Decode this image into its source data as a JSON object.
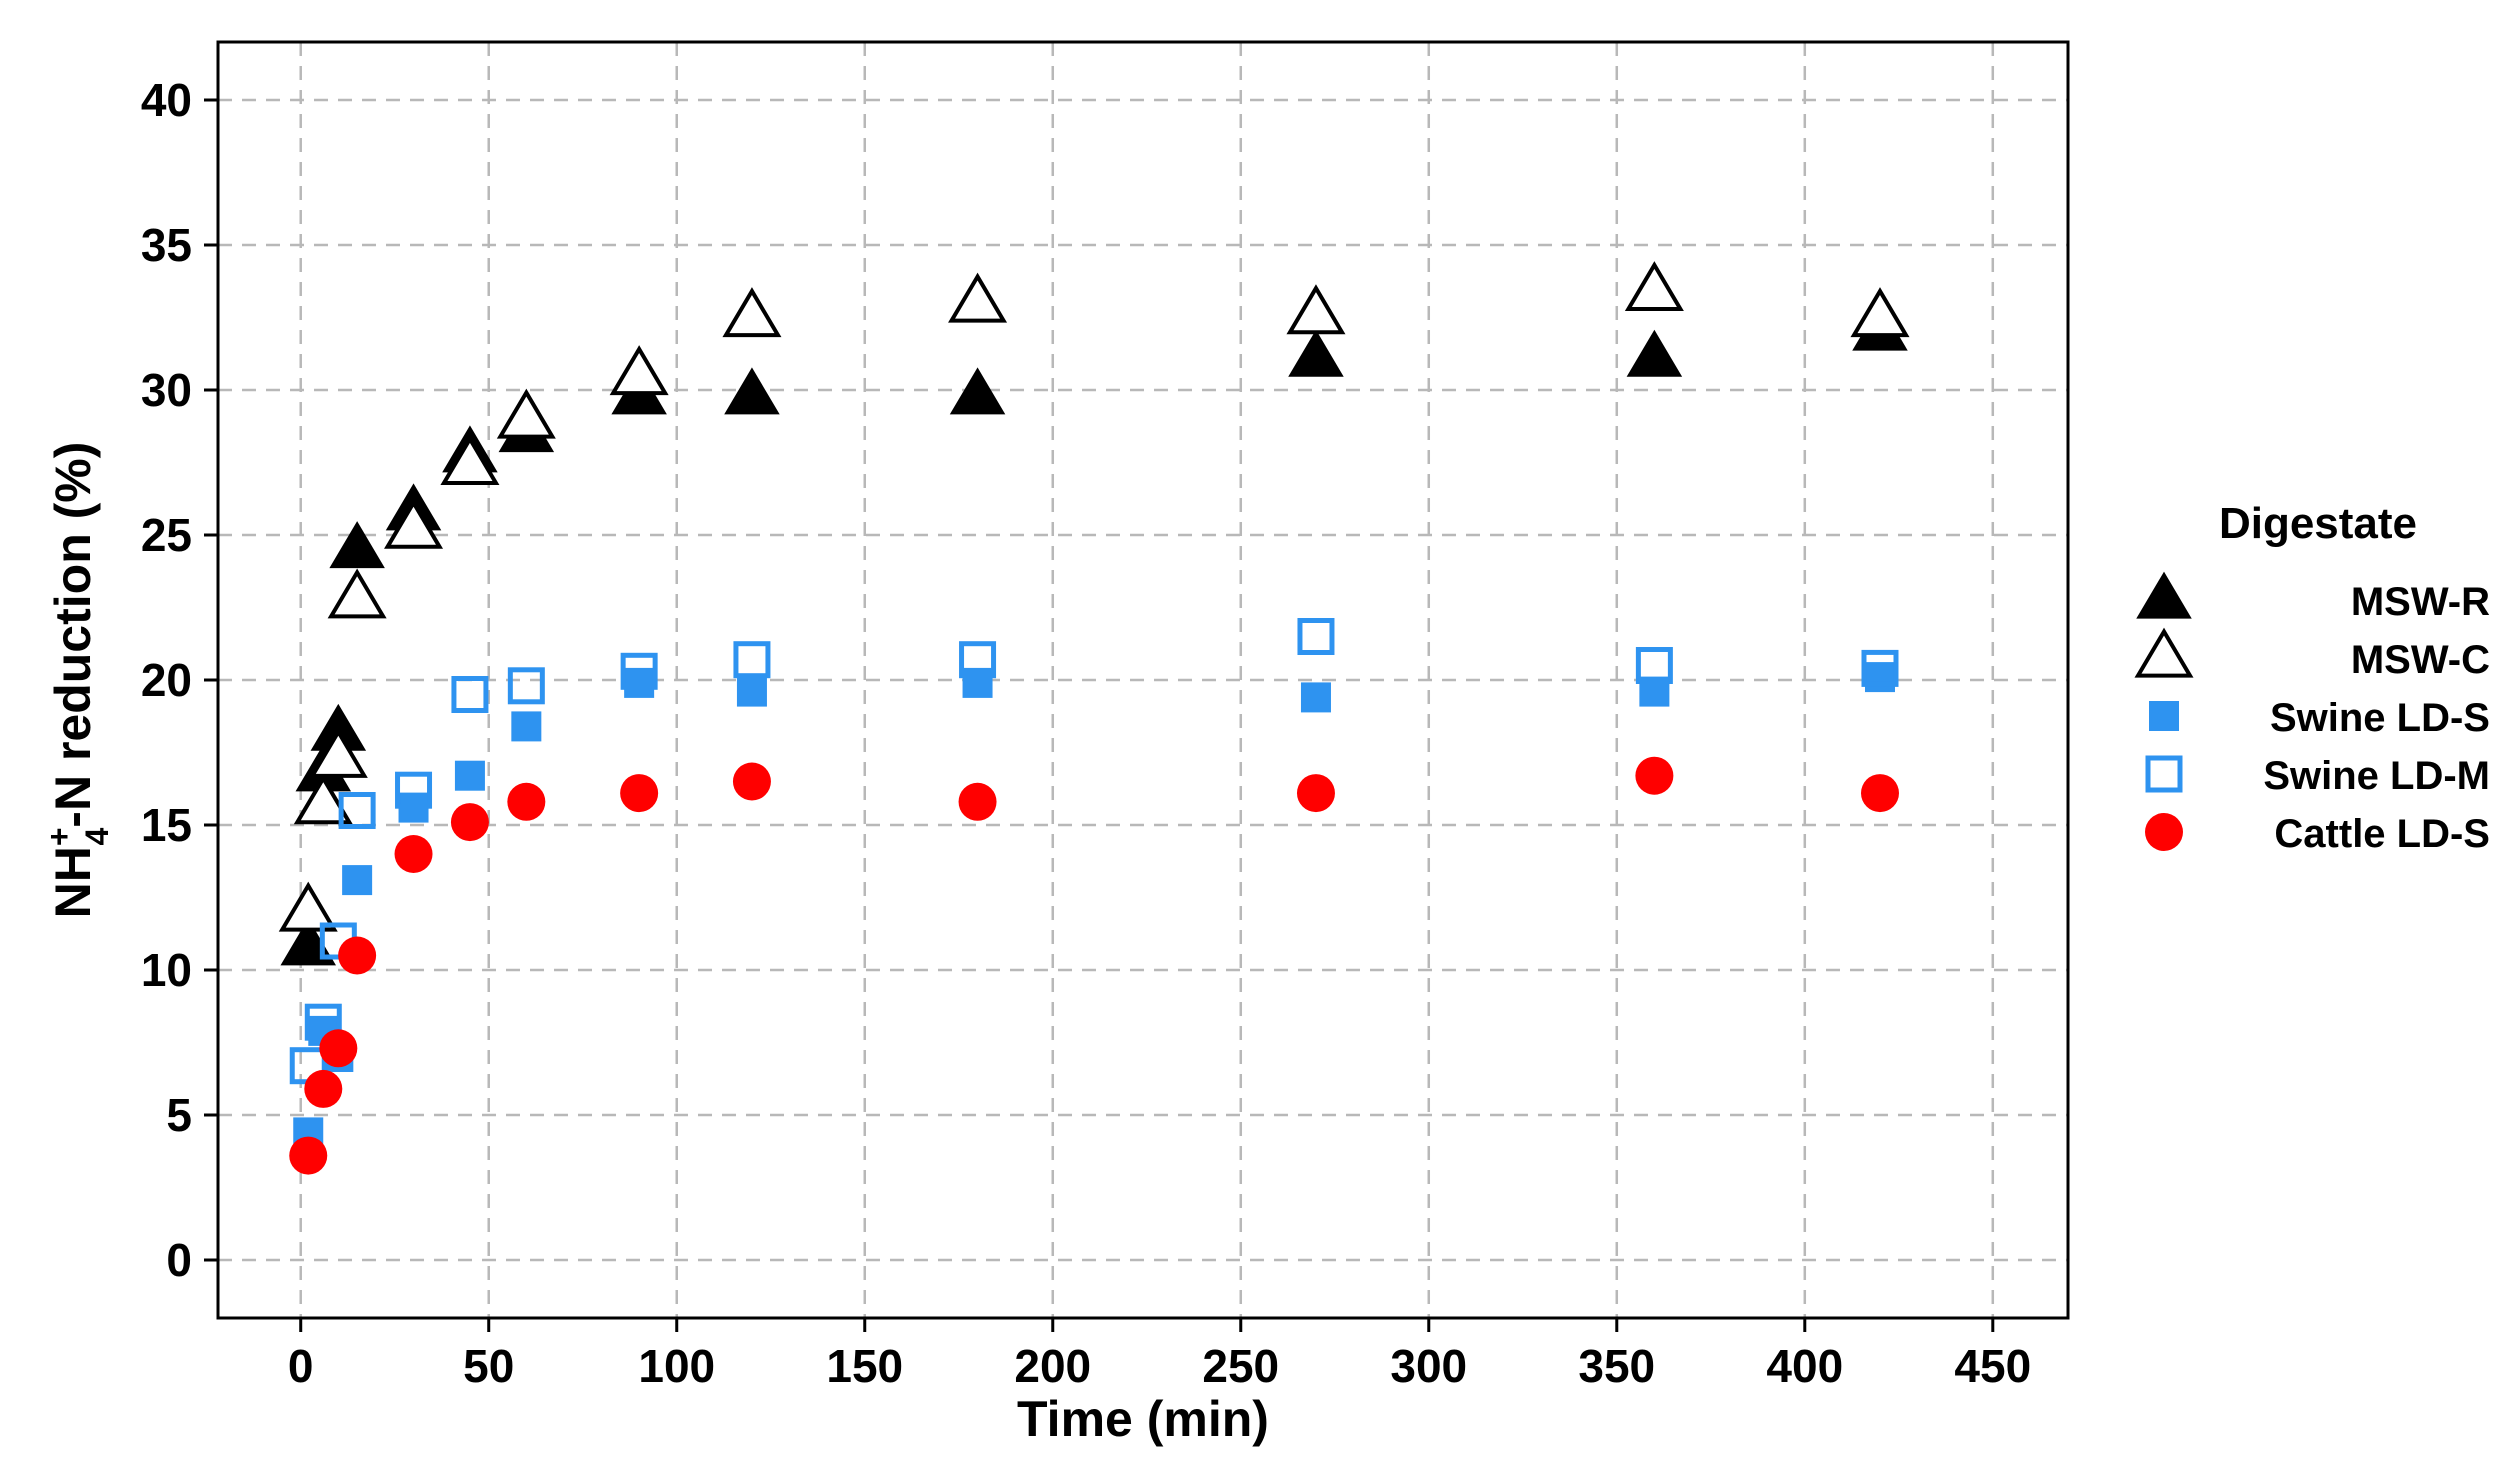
{
  "chart_data": {
    "type": "scatter",
    "xlabel": "Time (min)",
    "ylabel": {
      "base": "NH",
      "superscript": "+",
      "subscript": "4",
      "rest": "-N reduction (%)"
    },
    "xlim": [
      -22,
      470
    ],
    "ylim": [
      -2,
      42
    ],
    "xticks": [
      0,
      50,
      100,
      150,
      200,
      250,
      300,
      350,
      400,
      450
    ],
    "yticks": [
      0,
      5,
      10,
      15,
      20,
      25,
      30,
      35,
      40
    ],
    "grid": true,
    "legend": {
      "title": "Digestate",
      "position": "right"
    },
    "series": [
      {
        "name": "MSW-R",
        "marker": "triangle-filled",
        "color": "#000000",
        "points": [
          [
            2,
            10.8
          ],
          [
            6,
            16.8
          ],
          [
            10,
            18.2
          ],
          [
            15,
            24.5
          ],
          [
            30,
            25.8
          ],
          [
            45,
            27.8
          ],
          [
            60,
            28.5
          ],
          [
            90,
            29.8
          ],
          [
            120,
            29.8
          ],
          [
            180,
            29.8
          ],
          [
            270,
            31.1
          ],
          [
            360,
            31.1
          ],
          [
            420,
            32.0
          ]
        ]
      },
      {
        "name": "MSW-C",
        "marker": "triangle-open",
        "color": "#000000",
        "points": [
          [
            2,
            12.0
          ],
          [
            6,
            15.7
          ],
          [
            10,
            17.3
          ],
          [
            15,
            22.8
          ],
          [
            30,
            25.2
          ],
          [
            45,
            27.4
          ],
          [
            60,
            29.0
          ],
          [
            90,
            30.5
          ],
          [
            120,
            32.5
          ],
          [
            180,
            33.0
          ],
          [
            270,
            32.6
          ],
          [
            360,
            33.4
          ],
          [
            420,
            32.5
          ]
        ]
      },
      {
        "name": "Swine LD-S",
        "marker": "square-filled",
        "color": "#2E93F0",
        "points": [
          [
            2,
            4.4
          ],
          [
            6,
            7.9
          ],
          [
            10,
            7.0
          ],
          [
            15,
            13.1
          ],
          [
            30,
            15.6
          ],
          [
            45,
            16.7
          ],
          [
            60,
            18.4
          ],
          [
            90,
            19.9
          ],
          [
            120,
            19.6
          ],
          [
            180,
            19.9
          ],
          [
            270,
            19.4
          ],
          [
            360,
            19.6
          ],
          [
            420,
            20.1
          ]
        ]
      },
      {
        "name": "Swine LD-M",
        "marker": "square-open",
        "color": "#2E93F0",
        "points": [
          [
            2,
            6.7
          ],
          [
            6,
            8.2
          ],
          [
            10,
            11.0
          ],
          [
            15,
            15.5
          ],
          [
            30,
            16.2
          ],
          [
            45,
            19.5
          ],
          [
            60,
            19.8
          ],
          [
            90,
            20.3
          ],
          [
            120,
            20.7
          ],
          [
            180,
            20.7
          ],
          [
            270,
            21.5
          ],
          [
            360,
            20.5
          ],
          [
            420,
            20.4
          ]
        ]
      },
      {
        "name": "Cattle LD-S",
        "marker": "circle-filled",
        "color": "#FF0000",
        "points": [
          [
            2,
            3.6
          ],
          [
            6,
            5.9
          ],
          [
            10,
            7.3
          ],
          [
            15,
            10.5
          ],
          [
            30,
            14.0
          ],
          [
            45,
            15.1
          ],
          [
            60,
            15.8
          ],
          [
            90,
            16.1
          ],
          [
            120,
            16.5
          ],
          [
            180,
            15.8
          ],
          [
            270,
            16.1
          ],
          [
            360,
            16.7
          ],
          [
            420,
            16.1
          ]
        ]
      }
    ]
  }
}
